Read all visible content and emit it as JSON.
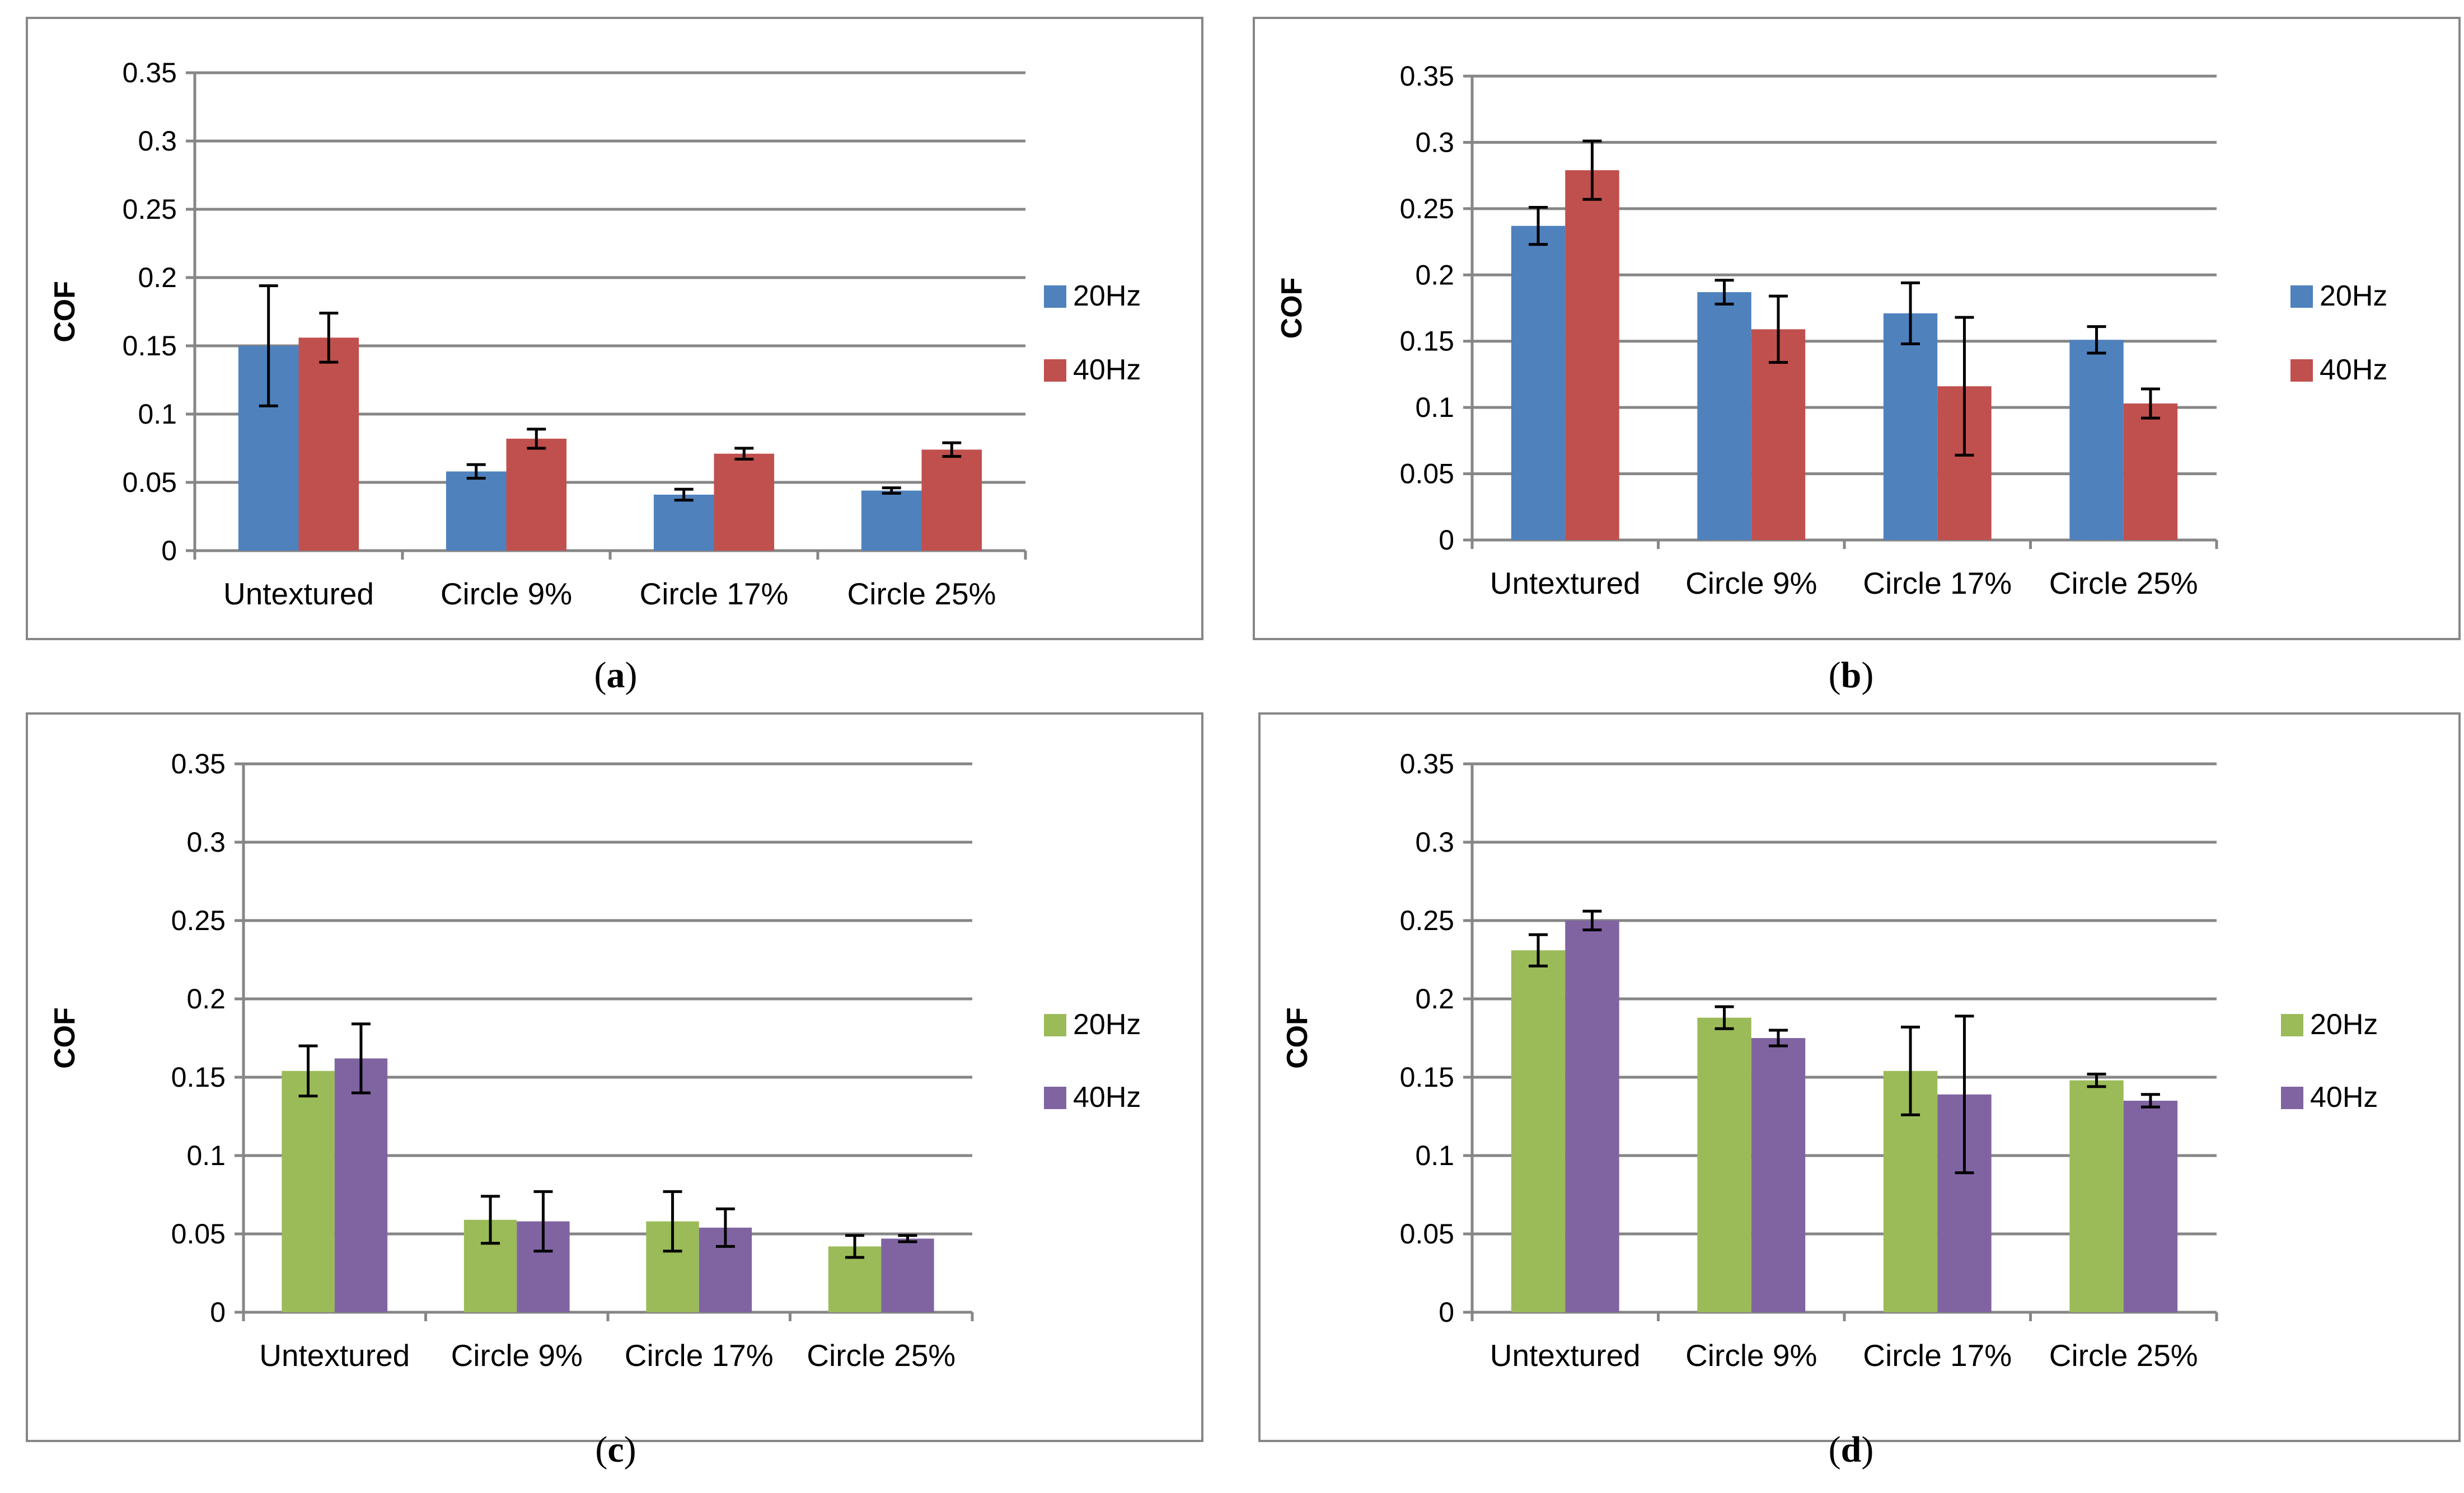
{
  "colors": {
    "blue": "#4F81BD",
    "red": "#C0504D",
    "green": "#9BBB59",
    "purple": "#8064A2",
    "grid": "#868686",
    "frame": "#868686",
    "text": "#000000"
  },
  "chart_data": [
    {
      "type": "bar",
      "caption": "(a)",
      "caption_letter": "a",
      "ylabel": "COF",
      "ylim": [
        0,
        0.35
      ],
      "yticks": [
        "0",
        "0.05",
        "0.1",
        "0.15",
        "0.2",
        "0.25",
        "0.3",
        "0.35"
      ],
      "categories": [
        "Untextured",
        "Circle 9%",
        "Circle 17%",
        "Circle 25%"
      ],
      "legend_position": "right",
      "series": [
        {
          "name": "20Hz",
          "color_key": "blue",
          "values": [
            0.15,
            0.058,
            0.041,
            0.044
          ],
          "errors": [
            0.044,
            0.005,
            0.004,
            0.002
          ]
        },
        {
          "name": "40Hz",
          "color_key": "red",
          "values": [
            0.156,
            0.082,
            0.071,
            0.074
          ],
          "errors": [
            0.018,
            0.007,
            0.004,
            0.005
          ]
        }
      ]
    },
    {
      "type": "bar",
      "caption": "(b)",
      "caption_letter": "b",
      "ylabel": "COF",
      "ylim": [
        0,
        0.35
      ],
      "yticks": [
        "0",
        "0.05",
        "0.1",
        "0.15",
        "0.2",
        "0.25",
        "0.3",
        "0.35"
      ],
      "categories": [
        "Untextured",
        "Circle 9%",
        "Circle 17%",
        "Circle 25%"
      ],
      "legend_position": "right",
      "series": [
        {
          "name": "20Hz",
          "color_key": "blue",
          "values": [
            0.237,
            0.187,
            0.171,
            0.151
          ],
          "errors": [
            0.014,
            0.009,
            0.023,
            0.01
          ]
        },
        {
          "name": "40Hz",
          "color_key": "red",
          "values": [
            0.279,
            0.159,
            0.116,
            0.103
          ],
          "errors": [
            0.022,
            0.025,
            0.052,
            0.011
          ]
        }
      ]
    },
    {
      "type": "bar",
      "caption": "(c)",
      "caption_letter": "c",
      "ylabel": "COF",
      "ylim": [
        0,
        0.35
      ],
      "yticks": [
        "0",
        "0.05",
        "0.1",
        "0.15",
        "0.2",
        "0.25",
        "0.3",
        "0.35"
      ],
      "categories": [
        "Untextured",
        "Circle 9%",
        "Circle 17%",
        "Circle 25%"
      ],
      "legend_position": "right",
      "series": [
        {
          "name": "20Hz",
          "color_key": "green",
          "values": [
            0.154,
            0.059,
            0.058,
            0.042
          ],
          "errors": [
            0.016,
            0.015,
            0.019,
            0.007
          ]
        },
        {
          "name": "40Hz",
          "color_key": "purple",
          "values": [
            0.162,
            0.058,
            0.054,
            0.047
          ],
          "errors": [
            0.022,
            0.019,
            0.012,
            0.002
          ]
        }
      ]
    },
    {
      "type": "bar",
      "caption": "(d)",
      "caption_letter": "d",
      "ylabel": "COF",
      "ylim": [
        0,
        0.35
      ],
      "yticks": [
        "0",
        "0.05",
        "0.1",
        "0.15",
        "0.2",
        "0.25",
        "0.3",
        "0.35"
      ],
      "categories": [
        "Untextured",
        "Circle 9%",
        "Circle 17%",
        "Circle 25%"
      ],
      "legend_position": "right",
      "series": [
        {
          "name": "20Hz",
          "color_key": "green",
          "values": [
            0.231,
            0.188,
            0.154,
            0.148
          ],
          "errors": [
            0.01,
            0.007,
            0.028,
            0.004
          ]
        },
        {
          "name": "40Hz",
          "color_key": "purple",
          "values": [
            0.25,
            0.175,
            0.139,
            0.135
          ],
          "errors": [
            0.006,
            0.005,
            0.05,
            0.004
          ]
        }
      ]
    }
  ]
}
